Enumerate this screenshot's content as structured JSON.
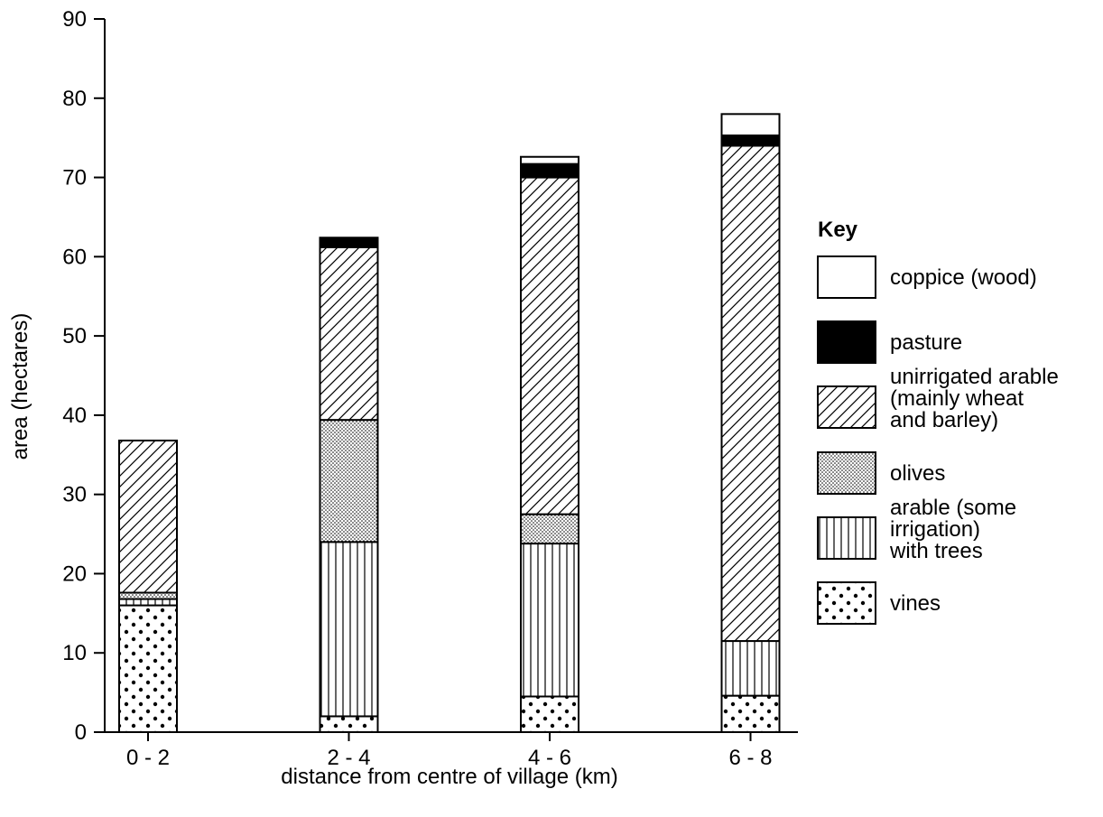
{
  "chart_data": {
    "type": "bar",
    "stacked": true,
    "title": "",
    "xlabel": "distance from centre of village (km)",
    "ylabel": "area (hectares)",
    "ylim": [
      0,
      90
    ],
    "yticks": [
      "0",
      "10",
      "20",
      "30",
      "40",
      "50",
      "60",
      "70",
      "80",
      "90"
    ],
    "categories": [
      "0 - 2",
      "2 - 4",
      "4 - 6",
      "6 - 8"
    ],
    "grid": false,
    "legend_position": "right",
    "legend_title": "Key",
    "series": [
      {
        "name": "vines",
        "pattern": "dots",
        "values": [
          16,
          2,
          4.5,
          4.6
        ]
      },
      {
        "name": "arable (some irrigation) with trees",
        "pattern": "vertical-lines",
        "values": [
          0.8,
          22,
          19.3,
          6.9
        ]
      },
      {
        "name": "olives",
        "pattern": "fine-dots",
        "values": [
          0.8,
          15.4,
          3.7,
          0
        ]
      },
      {
        "name": "unirrigated arable (mainly wheat and barley)",
        "pattern": "diagonal-lines",
        "values": [
          19.2,
          21.8,
          42.5,
          62.5
        ]
      },
      {
        "name": "pasture",
        "pattern": "solid-black",
        "values": [
          0,
          1.2,
          1.7,
          1.3
        ]
      },
      {
        "name": "coppice (wood)",
        "pattern": "white",
        "values": [
          0,
          0,
          0.9,
          2.7
        ]
      }
    ],
    "legend": [
      {
        "pattern": "white",
        "lines": [
          "coppice (wood)"
        ]
      },
      {
        "pattern": "solid-black",
        "lines": [
          "pasture"
        ]
      },
      {
        "pattern": "diagonal-lines",
        "lines": [
          "unirrigated arable",
          "(mainly wheat",
          "and barley)"
        ]
      },
      {
        "pattern": "fine-dots",
        "lines": [
          "olives"
        ]
      },
      {
        "pattern": "vertical-lines",
        "lines": [
          "arable (some",
          "irrigation)",
          "with trees"
        ]
      },
      {
        "pattern": "dots",
        "lines": [
          "vines"
        ]
      }
    ]
  }
}
